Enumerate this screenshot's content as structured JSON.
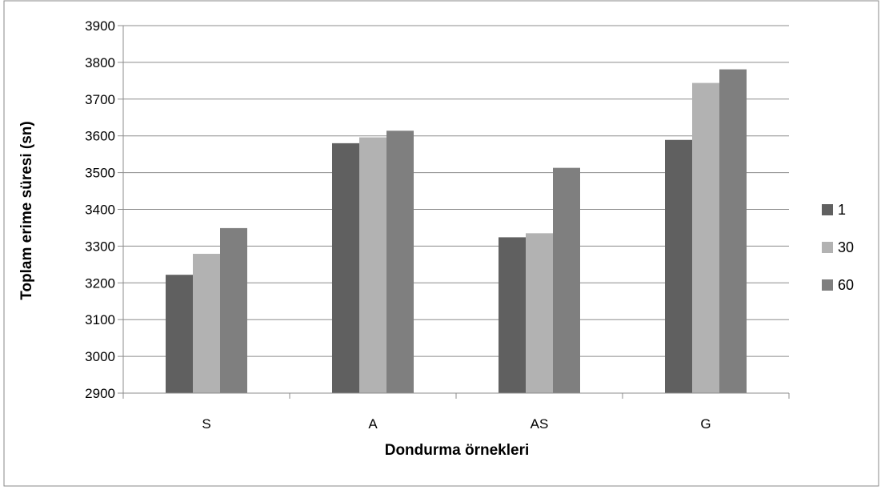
{
  "chart_data": {
    "type": "bar",
    "title": "",
    "xlabel": "Dondurma örnekleri",
    "ylabel": "Toplam erime süresi (sn)",
    "categories": [
      "S",
      "A",
      "AS",
      "G"
    ],
    "series": [
      {
        "name": "1",
        "color": "#606060",
        "values": [
          3222,
          3580,
          3324,
          3589
        ]
      },
      {
        "name": "30",
        "color": "#b2b2b2",
        "values": [
          3279,
          3596,
          3335,
          3744
        ]
      },
      {
        "name": "60",
        "color": "#7f7f7f",
        "values": [
          3349,
          3614,
          3513,
          3781
        ]
      }
    ],
    "ylim": [
      2900,
      3900
    ],
    "yticks": [
      "2900",
      "3000",
      "3100",
      "3200",
      "3300",
      "3400",
      "3500",
      "3600",
      "3700",
      "3800",
      "3900"
    ],
    "grid": true,
    "legend_position": "right"
  }
}
